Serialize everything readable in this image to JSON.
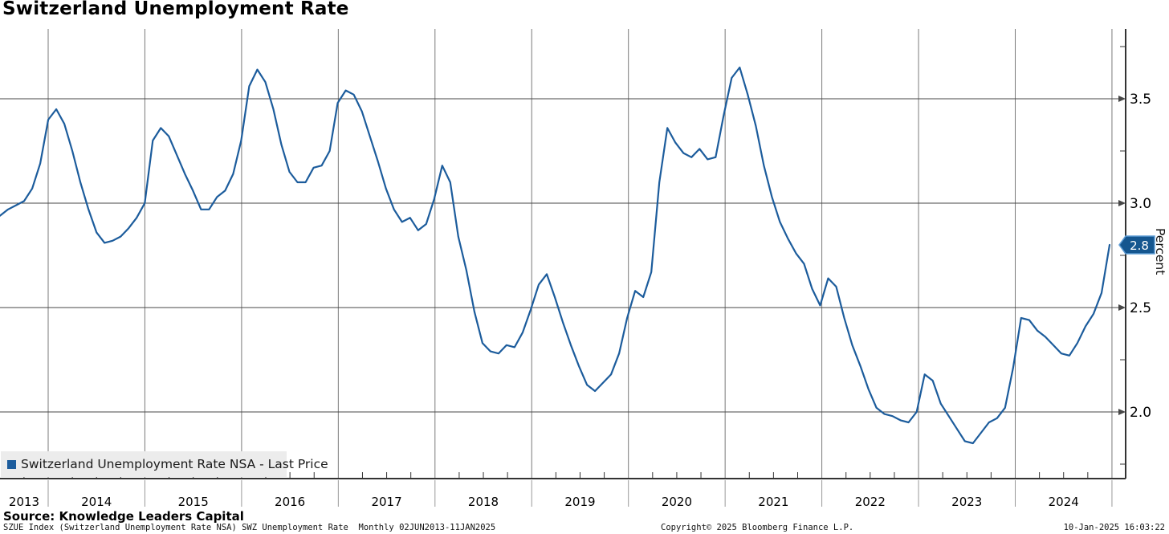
{
  "title": "Switzerland Unemployment Rate",
  "legend": {
    "label": "Switzerland Unemployment Rate NSA - Last Price"
  },
  "source_line": "Source: Knowledge Leaders Capital",
  "footer": {
    "left": "SZUE Index (Switzerland Unemployment Rate NSA) SWZ Unemployment Rate  Monthly 02JUN2013-11JAN2025",
    "copyright": "Copyright© 2025 Bloomberg Finance L.P.",
    "timestamp": "10-Jan-2025 16:03:22"
  },
  "y_axis": {
    "label": "Percent",
    "ticks": [
      "3.5",
      "3.0",
      "2.5",
      "2.0"
    ],
    "tick_values": [
      3.5,
      3.0,
      2.5,
      2.0
    ],
    "minor_tick_values": [
      3.75,
      3.25,
      2.75,
      2.25,
      1.75
    ],
    "last_price_label": "2.8",
    "last_price_value": 2.8
  },
  "x_axis": {
    "tick_labels": [
      "2013",
      "2014",
      "2015",
      "2016",
      "2017",
      "2018",
      "2019",
      "2020",
      "2021",
      "2022",
      "2023",
      "2024"
    ]
  },
  "colors": {
    "line": "#1c5c9c",
    "badge_fill": "#15568f",
    "badge_border": "#5d9bd3",
    "badge_text": "#ffffff",
    "legend_bg": "#ececec",
    "grid_vertical": "#7a7a7a",
    "grid_horizontal": "#474747",
    "axis": "#333333",
    "label_divider": "#999999"
  },
  "chart_data": {
    "type": "line",
    "title": "Switzerland Unemployment Rate",
    "series_name": "Switzerland Unemployment Rate NSA - Last Price",
    "frequency": "monthly",
    "start": "2013-06",
    "end": "2024-12",
    "xlabel": "",
    "ylabel": "Percent",
    "ylim": [
      1.68,
      3.83
    ],
    "y_ticks": [
      2.0,
      2.5,
      3.0,
      3.5
    ],
    "grid": true,
    "legend_position": "bottom-left",
    "x_year_labels": [
      "2013",
      "2014",
      "2015",
      "2016",
      "2017",
      "2018",
      "2019",
      "2020",
      "2021",
      "2022",
      "2023",
      "2024"
    ],
    "last_price": 2.8,
    "values": [
      2.94,
      2.97,
      2.99,
      3.01,
      3.07,
      3.19,
      3.4,
      3.45,
      3.38,
      3.25,
      3.1,
      2.97,
      2.86,
      2.81,
      2.82,
      2.84,
      2.88,
      2.93,
      3.0,
      3.3,
      3.36,
      3.32,
      3.23,
      3.14,
      3.06,
      2.97,
      2.97,
      3.03,
      3.06,
      3.14,
      3.3,
      3.56,
      3.64,
      3.58,
      3.45,
      3.28,
      3.15,
      3.1,
      3.1,
      3.17,
      3.18,
      3.25,
      3.48,
      3.54,
      3.52,
      3.44,
      3.32,
      3.2,
      3.07,
      2.97,
      2.91,
      2.93,
      2.87,
      2.9,
      3.02,
      3.18,
      3.1,
      2.84,
      2.68,
      2.48,
      2.33,
      2.29,
      2.28,
      2.32,
      2.31,
      2.38,
      2.49,
      2.61,
      2.66,
      2.55,
      2.43,
      2.32,
      2.22,
      2.13,
      2.1,
      2.14,
      2.18,
      2.28,
      2.45,
      2.58,
      2.55,
      2.67,
      3.1,
      3.36,
      3.29,
      3.24,
      3.22,
      3.26,
      3.21,
      3.22,
      3.42,
      3.6,
      3.65,
      3.52,
      3.37,
      3.18,
      3.03,
      2.91,
      2.83,
      2.76,
      2.71,
      2.59,
      2.51,
      2.64,
      2.6,
      2.45,
      2.32,
      2.22,
      2.11,
      2.02,
      1.99,
      1.98,
      1.96,
      1.95,
      2.0,
      2.18,
      2.15,
      2.04,
      1.98,
      1.92,
      1.86,
      1.85,
      1.9,
      1.95,
      1.97,
      2.02,
      2.21,
      2.45,
      2.44,
      2.39,
      2.36,
      2.32,
      2.28,
      2.27,
      2.33,
      2.41,
      2.47,
      2.57,
      2.8
    ]
  }
}
